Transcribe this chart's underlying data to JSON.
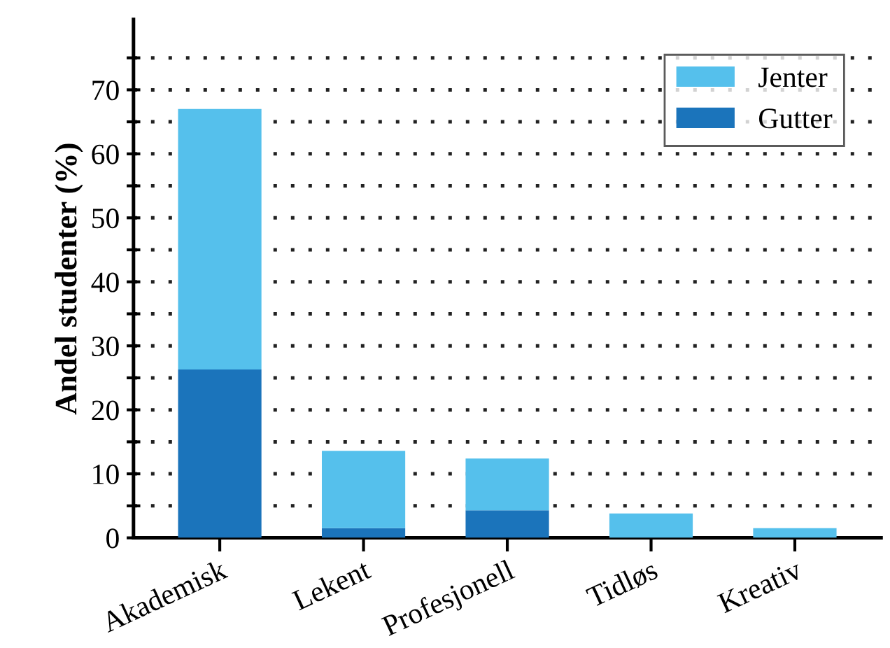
{
  "chart_data": {
    "type": "bar",
    "ylabel": "Andel studenter (%)",
    "categories": [
      "Akademisk",
      "Lekent",
      "Profesjonell",
      "Tidløs",
      "Kreativ"
    ],
    "stacked": true,
    "series": [
      {
        "name": "Gutter",
        "color": "#1b74bb",
        "values": [
          26.3,
          1.5,
          4.3,
          0,
          0
        ]
      },
      {
        "name": "Jenter",
        "color": "#55c0ec",
        "values": [
          40.7,
          12.1,
          8.1,
          3.8,
          1.5
        ]
      }
    ],
    "ylim": [
      0,
      81
    ],
    "yticks": [
      0,
      {
        "value": 5,
        "label": null
      },
      10,
      {
        "value": 15,
        "label": null
      },
      20,
      {
        "value": 25,
        "label": null
      },
      30,
      {
        "value": 35,
        "label": null
      },
      40,
      {
        "value": 45,
        "label": null
      },
      50,
      {
        "value": 55,
        "label": null
      },
      60,
      {
        "value": 65,
        "label": null
      },
      70,
      {
        "value": 75,
        "label": null
      }
    ],
    "grid": "y",
    "legend": "top right"
  }
}
